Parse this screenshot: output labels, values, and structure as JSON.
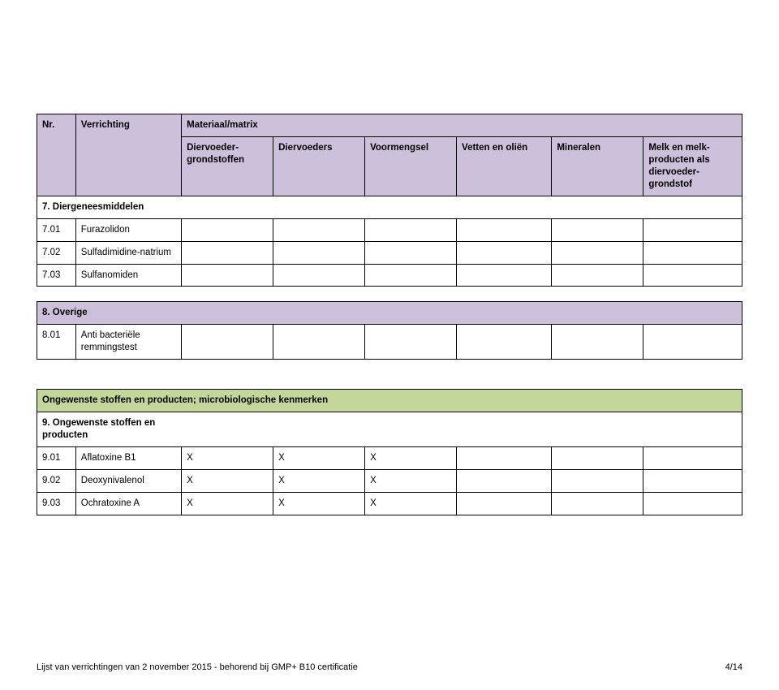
{
  "colors": {
    "header_purple": "#ccc0da",
    "header_green": "#c4d79b",
    "border": "#000000",
    "background": "#ffffff",
    "text": "#000000"
  },
  "typography": {
    "family": "Arial",
    "body_pt": 12,
    "footer_pt": 11
  },
  "columns": {
    "nr": "Nr.",
    "verrichting": "Verrichting",
    "materiaal_group": "Materiaal/matrix",
    "diervoeder_grondstoffen": "Diervoeder-grondstoffen",
    "diervoeders": "Diervoeders",
    "voormengsel": "Voormengsel",
    "vetten": "Vetten en oliën",
    "mineralen": "Mineralen",
    "melk": "Melk en melk-producten als diervoeder-grondstof"
  },
  "table1": {
    "section7": "7. Diergeneesmiddelen",
    "rows": [
      {
        "nr": "7.01",
        "name": "Furazolidon"
      },
      {
        "nr": "7.02",
        "name": "Sulfadimidine-natrium"
      },
      {
        "nr": "7.03",
        "name": "Sulfanomiden"
      }
    ]
  },
  "table2": {
    "section8": "8. Overige",
    "rows": [
      {
        "nr": "8.01",
        "name": "Anti bacteriële remmingstest"
      }
    ]
  },
  "table3": {
    "banner": "Ongewenste stoffen en producten; microbiologische kenmerken",
    "section9": "9. Ongewenste stoffen en producten",
    "rows": [
      {
        "nr": "9.01",
        "name": "Aflatoxine B1",
        "c1": "X",
        "c2": "X",
        "c3": "X",
        "c4": "",
        "c5": "",
        "c6": ""
      },
      {
        "nr": "9.02",
        "name": "Deoxynivalenol",
        "c1": "X",
        "c2": "X",
        "c3": "X",
        "c4": "",
        "c5": "",
        "c6": ""
      },
      {
        "nr": "9.03",
        "name": "Ochratoxine A",
        "c1": "X",
        "c2": "X",
        "c3": "X",
        "c4": "",
        "c5": "",
        "c6": ""
      }
    ]
  },
  "footer": {
    "left": "Lijst van verrichtingen van 2 november 2015 -  behorend bij GMP+ B10 certificatie",
    "right": "4/14"
  }
}
